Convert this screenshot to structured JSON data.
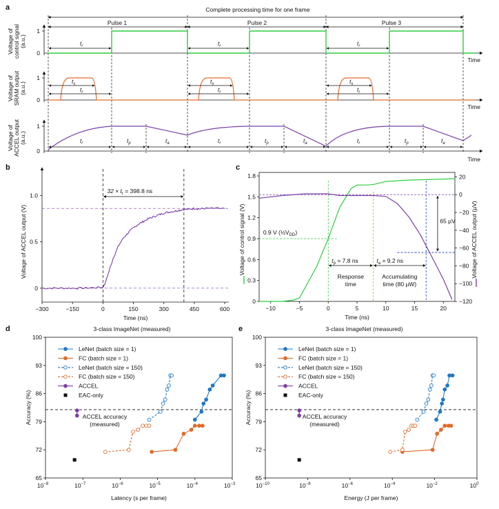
{
  "panel_letters": {
    "a": "a",
    "b": "b",
    "c": "c",
    "d": "d",
    "e": "e"
  },
  "panel_a": {
    "title": "Complete processing time for one frame",
    "pulses": [
      "Pulse 1",
      "Pulse 2",
      "Pulse 3"
    ],
    "rows": [
      {
        "ylabel_lines": [
          "Voltage of",
          "control signal",
          "(a.u.)"
        ],
        "xlabel": "Time",
        "yticks": [
          "0",
          "1"
        ]
      },
      {
        "ylabel_lines": [
          "Voltage of",
          "SRAM output",
          "(a.u.)"
        ],
        "xlabel": "Time",
        "yticks": [
          "0",
          "1"
        ]
      },
      {
        "ylabel_lines": [
          "Voltage of",
          "ACCEL output",
          "(a.u.)"
        ],
        "xlabel": "Time",
        "yticks": [
          "0",
          "1"
        ]
      }
    ],
    "labels": {
      "t_r": "t",
      "t_r_sub": "r",
      "t_s": "t",
      "t_s_sub": "s",
      "t_p": "t",
      "t_p_sub": "p",
      "t_a": "t",
      "t_a_sub": "a"
    },
    "colors": {
      "control": "#2ecc40",
      "sram": "#e06a2a",
      "accel": "#7b3fa8"
    }
  },
  "chart_data": [
    {
      "panel": "a",
      "type": "line",
      "title": "Complete processing time for one frame",
      "series": [
        {
          "name": "Voltage of control signal",
          "x": [
            0,
            2.9,
            2.9,
            6.4,
            6.4,
            9.8,
            9.8,
            13.2,
            13.2,
            16.6,
            16.6,
            20,
            20,
            21.5
          ],
          "values": [
            0,
            0,
            1,
            1,
            0,
            0,
            1,
            1,
            0,
            0,
            1,
            1,
            0,
            0
          ]
        },
        {
          "name": "Voltage of SRAM output",
          "x": [
            0,
            0.7,
            0.9,
            2.2,
            2.5,
            6.4,
            7.1,
            7.3,
            8.6,
            8.9,
            12.8,
            13.5,
            13.7,
            15.0,
            15.3,
            21.5
          ],
          "values": [
            0,
            0,
            1,
            1,
            0,
            0,
            0,
            1,
            1,
            0,
            0,
            0,
            1,
            1,
            0,
            0
          ]
        },
        {
          "name": "Voltage of ACCEL output",
          "x": [
            0,
            2.9,
            4.8,
            6.4,
            9.8,
            11.6,
            13.2,
            16.6,
            18.2,
            20,
            21.5
          ],
          "values": [
            0,
            0.95,
            1,
            0.6,
            0.96,
            1,
            0.2,
            0.96,
            1,
            0.6,
            0.8
          ]
        }
      ]
    },
    {
      "panel": "b",
      "type": "line",
      "xlabel": "Time (ns)",
      "ylabel": "Voltage of ACCEL output (V)",
      "xlim": [
        -300,
        620
      ],
      "ylim": [
        -0.15,
        1.3
      ],
      "xticks": [
        -300,
        -150,
        0,
        150,
        300,
        450,
        600
      ],
      "yticks": [
        0,
        0.5,
        1.0
      ],
      "ytick_labels": [
        "0",
        "0.5",
        "1.0"
      ],
      "annotation": "32 × t",
      "annotation_sub": "r",
      "annotation_tail": " = 398.8 ns",
      "reference_lines": {
        "x": [
          0,
          398.8
        ],
        "y": [
          0,
          0.86
        ]
      },
      "series": [
        {
          "x": [
            -300,
            -250,
            -200,
            -150,
            -100,
            -50,
            0,
            10,
            25,
            50,
            75,
            100,
            125,
            150,
            175,
            200,
            225,
            250,
            275,
            300,
            325,
            350,
            375,
            398.8,
            425,
            450,
            475,
            500,
            550,
            600
          ],
          "values": [
            0,
            0,
            0,
            0,
            0,
            0.005,
            0.01,
            0.05,
            0.15,
            0.32,
            0.45,
            0.54,
            0.6,
            0.65,
            0.69,
            0.72,
            0.75,
            0.77,
            0.79,
            0.81,
            0.82,
            0.83,
            0.84,
            0.85,
            0.85,
            0.86,
            0.855,
            0.86,
            0.86,
            0.86
          ]
        }
      ]
    },
    {
      "panel": "c",
      "type": "line",
      "xlabel": "Time (ns)",
      "ylabel_left": "Voltage of control signal (V)",
      "ylabel_right": "Voltage of ACCEL output (µV)",
      "xlim": [
        -12,
        22
      ],
      "ylim_left": [
        0,
        1.85
      ],
      "ylim_right": [
        -120,
        25
      ],
      "xticks": [
        -10,
        -5,
        0,
        5,
        10,
        15,
        20
      ],
      "yticks_left": [
        0,
        0.3,
        0.6,
        0.9,
        1.2,
        1.5,
        1.8
      ],
      "ytick_labels_left": [
        "0",
        "0.3",
        "0.6",
        "0.9",
        "1.2",
        "1.5",
        "1.8"
      ],
      "yticks_right": [
        -120,
        -100,
        -80,
        -60,
        -40,
        -20,
        0,
        20
      ],
      "annotations": {
        "half_vdd": "0.9 V (½V",
        "half_vdd_sub": "DD",
        "half_vdd_tail": ")",
        "tp": "t",
        "tp_sub": "p",
        "tp_tail": " = 7.8 ns",
        "ta": "t",
        "ta_sub": "a",
        "ta_tail": " = 9.2 ns",
        "response1": "Response",
        "response2": "time",
        "accum1": "Accumulating",
        "accum2": "time (80 µW)",
        "delta": "65 µV"
      },
      "series": [
        {
          "name": "Voltage of control signal",
          "axis": "left",
          "x": [
            -12,
            -10,
            -8,
            -6,
            -5,
            -2,
            0,
            2,
            4,
            5,
            7,
            8,
            10,
            14,
            18,
            22
          ],
          "values": [
            0,
            0,
            0,
            0.02,
            0.05,
            0.5,
            0.9,
            1.35,
            1.62,
            1.67,
            1.67,
            1.68,
            1.72,
            1.74,
            1.75,
            1.76
          ]
        },
        {
          "name": "Voltage of ACCEL output",
          "axis": "right",
          "x": [
            -12,
            -8,
            -4,
            -2,
            0,
            2,
            4,
            6,
            8,
            10,
            12,
            14,
            16,
            18,
            20,
            21.5
          ],
          "values": [
            -4,
            -1,
            1,
            1,
            1,
            -1,
            -1,
            -1,
            -1,
            -2,
            -10,
            -25,
            -45,
            -70,
            -95,
            -118
          ]
        }
      ],
      "reference_lines": {
        "x_green": 0,
        "x_orange": 7.8,
        "x_blue": 17,
        "y_green_left": 0.9,
        "y_purple_right": 0,
        "y_blue_right": -65
      }
    },
    {
      "panel": "d",
      "type": "scatter",
      "title": "3-class ImageNet (measured)",
      "xlabel": "Latency (s per frame)",
      "ylabel": "Accuracy (%)",
      "x_scale": "log",
      "xlim_exp": [
        -8,
        -3
      ],
      "ylim": [
        65,
        100
      ],
      "yticks": [
        65,
        72,
        79,
        86,
        93,
        100
      ],
      "xtick_base": "10",
      "xtick_exps": [
        "−8",
        "−7",
        "−6",
        "−5",
        "−4",
        "−3"
      ],
      "hline": 82,
      "hline_label1": "ACCEL accuracy",
      "hline_label2": "(measured)",
      "legend": [
        "LeNet (batch size = 1)",
        "FC (batch size = 1)",
        "LeNet (batch size = 150)",
        "FC (batch size = 150)",
        "ACCEL",
        "EAC-only"
      ],
      "series": [
        {
          "name": "LeNet (batch size = 1)",
          "color": "#1f77c4",
          "style": "solid",
          "filled": true,
          "x": [
            0.0001,
            0.00015,
            0.00017,
            0.0002,
            0.00025,
            0.0003,
            0.0005,
            0.0006
          ],
          "values": [
            79.5,
            81.5,
            83.5,
            84.5,
            87.0,
            88.0,
            90.5,
            90.5
          ]
        },
        {
          "name": "FC (batch size = 1)",
          "color": "#e06a2a",
          "style": "solid",
          "filled": true,
          "x": [
            7e-06,
            3e-05,
            5e-05,
            8e-05,
            0.0001,
            0.00013,
            0.00016
          ],
          "values": [
            71.5,
            72.0,
            76.0,
            77.0,
            78.0,
            78.0,
            78.0
          ]
        },
        {
          "name": "LeNet (batch size = 150)",
          "color": "#1f77c4",
          "style": "dashed",
          "filled": false,
          "x": [
            6e-06,
            1.2e-05,
            1.4e-05,
            1.6e-05,
            1.8e-05,
            2e-05,
            2.2e-05,
            2.4e-05
          ],
          "values": [
            79.5,
            81.5,
            83.5,
            84.5,
            87.0,
            88.0,
            90.5,
            90.5
          ]
        },
        {
          "name": "FC (batch size = 150)",
          "color": "#e06a2a",
          "style": "dashed",
          "filled": false,
          "x": [
            4e-07,
            1.7e-06,
            2.2e-06,
            3e-06,
            4e-06,
            5e-06,
            6e-06
          ],
          "values": [
            71.5,
            72.0,
            76.5,
            77.0,
            78.0,
            78.0,
            78.0
          ]
        },
        {
          "name": "ACCEL",
          "color": "#7b3fa8",
          "style": "solid",
          "filled": true,
          "x": [
            7e-08,
            7e-08
          ],
          "values": [
            80.5,
            81.8
          ]
        },
        {
          "name": "EAC-only",
          "color": "#111111",
          "style": "none",
          "marker": "square",
          "x": [
            6e-08
          ],
          "values": [
            69.5
          ]
        }
      ]
    },
    {
      "panel": "e",
      "type": "scatter",
      "title": "3-class ImageNet (measured)",
      "xlabel": "Energy (J per frame)",
      "ylabel": "Accuracy (%)",
      "x_scale": "log",
      "xlim_exp": [
        -10,
        0
      ],
      "ylim": [
        65,
        100
      ],
      "yticks": [
        65,
        72,
        79,
        86,
        93,
        100
      ],
      "xtick_base": "10",
      "xtick_exps": [
        "−10",
        "−8",
        "−6",
        "−4",
        "−2",
        "0"
      ],
      "hline": 82,
      "hline_label1": "ACCEL accuracy",
      "hline_label2": "(measured)",
      "legend": [
        "LeNet (batch size = 1)",
        "FC (batch size = 1)",
        "LeNet (batch size = 150)",
        "FC (batch size = 150)",
        "ACCEL",
        "EAC-only"
      ],
      "series": [
        {
          "name": "LeNet (batch size = 1)",
          "color": "#1f77c4",
          "style": "solid",
          "filled": true,
          "x": [
            0.012,
            0.018,
            0.022,
            0.025,
            0.03,
            0.04,
            0.05,
            0.07
          ],
          "values": [
            79.5,
            81.5,
            83.5,
            84.5,
            87.0,
            88.0,
            90.5,
            90.5
          ]
        },
        {
          "name": "FC (batch size = 1)",
          "color": "#e06a2a",
          "style": "solid",
          "filled": true,
          "x": [
            0.0003,
            0.008,
            0.013,
            0.02,
            0.03,
            0.045,
            0.06
          ],
          "values": [
            71.5,
            72.0,
            76.0,
            77.0,
            78.0,
            78.0,
            78.0
          ]
        },
        {
          "name": "LeNet (batch size = 150)",
          "color": "#1f77c4",
          "style": "dashed",
          "filled": false,
          "x": [
            0.0015,
            0.003,
            0.004,
            0.005,
            0.006,
            0.007,
            0.008,
            0.009
          ],
          "values": [
            79.5,
            81.5,
            83.5,
            84.5,
            87.0,
            88.0,
            90.5,
            90.5
          ]
        },
        {
          "name": "FC (batch size = 150)",
          "color": "#e06a2a",
          "style": "dashed",
          "filled": false,
          "x": [
            8e-05,
            0.0003,
            0.0004,
            0.0006,
            0.0008,
            0.001,
            0.0012
          ],
          "values": [
            71.5,
            72.0,
            76.5,
            77.0,
            78.0,
            78.0,
            78.0
          ]
        },
        {
          "name": "ACCEL",
          "color": "#7b3fa8",
          "style": "solid",
          "filled": true,
          "x": [
            4e-09,
            4e-09
          ],
          "values": [
            80.5,
            81.8
          ]
        },
        {
          "name": "EAC-only",
          "color": "#111111",
          "style": "none",
          "marker": "square",
          "x": [
            4e-09
          ],
          "values": [
            69.5
          ]
        }
      ]
    }
  ]
}
